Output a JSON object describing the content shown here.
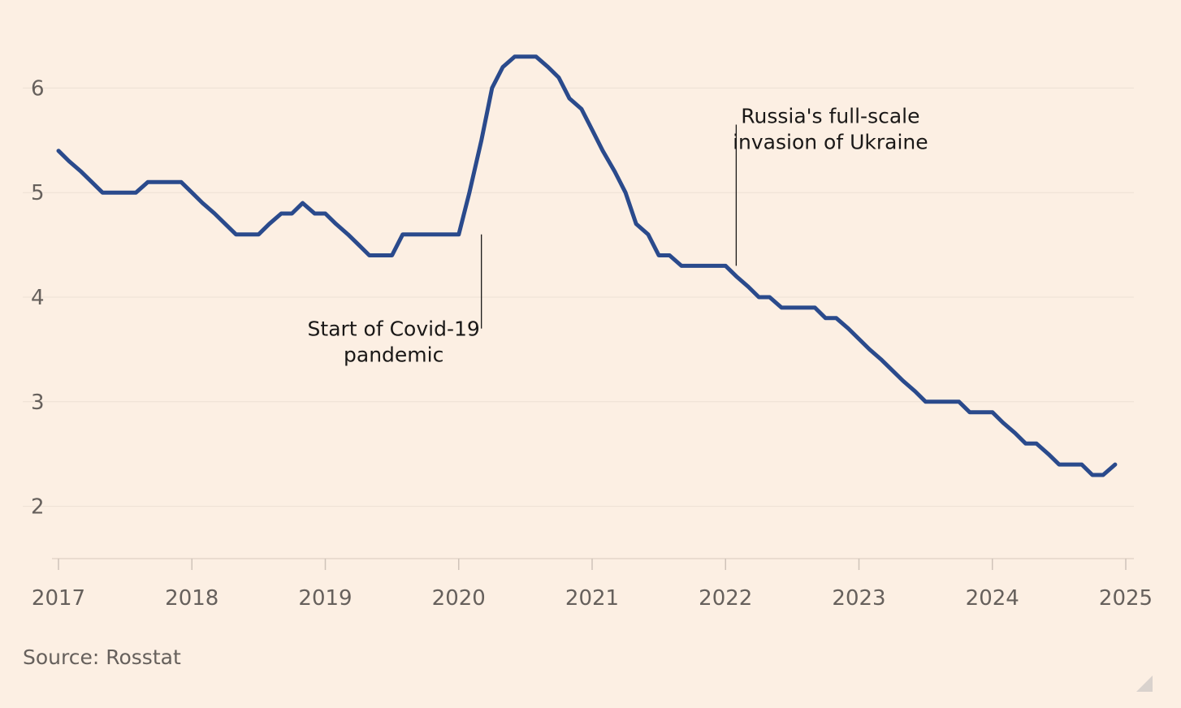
{
  "chart_data": {
    "type": "line",
    "title": "",
    "xlabel": "",
    "ylabel": "",
    "ylim": [
      1.5,
      6.5
    ],
    "xlim": [
      2017,
      2025
    ],
    "y_ticks": [
      "2",
      "3",
      "4",
      "5",
      "6"
    ],
    "x_ticks": [
      "2017",
      "2018",
      "2019",
      "2020",
      "2021",
      "2022",
      "2023",
      "2024",
      "2025"
    ],
    "grid": "horizontal",
    "series": [
      {
        "color": "#2a4a8c",
        "points": [
          [
            2017.0,
            5.4
          ],
          [
            2017.08,
            5.3
          ],
          [
            2017.17,
            5.2
          ],
          [
            2017.25,
            5.1
          ],
          [
            2017.33,
            5.0
          ],
          [
            2017.42,
            5.0
          ],
          [
            2017.5,
            5.0
          ],
          [
            2017.58,
            5.0
          ],
          [
            2017.67,
            5.1
          ],
          [
            2017.75,
            5.1
          ],
          [
            2017.83,
            5.1
          ],
          [
            2017.92,
            5.1
          ],
          [
            2018.0,
            5.0
          ],
          [
            2018.08,
            4.9
          ],
          [
            2018.17,
            4.8
          ],
          [
            2018.25,
            4.7
          ],
          [
            2018.33,
            4.6
          ],
          [
            2018.42,
            4.6
          ],
          [
            2018.5,
            4.6
          ],
          [
            2018.58,
            4.7
          ],
          [
            2018.67,
            4.8
          ],
          [
            2018.75,
            4.8
          ],
          [
            2018.83,
            4.9
          ],
          [
            2018.92,
            4.8
          ],
          [
            2019.0,
            4.8
          ],
          [
            2019.08,
            4.7
          ],
          [
            2019.17,
            4.6
          ],
          [
            2019.25,
            4.5
          ],
          [
            2019.33,
            4.4
          ],
          [
            2019.42,
            4.4
          ],
          [
            2019.5,
            4.4
          ],
          [
            2019.58,
            4.6
          ],
          [
            2019.67,
            4.6
          ],
          [
            2019.75,
            4.6
          ],
          [
            2019.83,
            4.6
          ],
          [
            2019.92,
            4.6
          ],
          [
            2020.0,
            4.6
          ],
          [
            2020.08,
            5.0
          ],
          [
            2020.17,
            5.5
          ],
          [
            2020.25,
            6.0
          ],
          [
            2020.33,
            6.2
          ],
          [
            2020.42,
            6.3
          ],
          [
            2020.5,
            6.3
          ],
          [
            2020.58,
            6.3
          ],
          [
            2020.67,
            6.2
          ],
          [
            2020.75,
            6.1
          ],
          [
            2020.83,
            5.9
          ],
          [
            2020.92,
            5.8
          ],
          [
            2021.0,
            5.6
          ],
          [
            2021.08,
            5.4
          ],
          [
            2021.17,
            5.2
          ],
          [
            2021.25,
            5.0
          ],
          [
            2021.33,
            4.7
          ],
          [
            2021.42,
            4.6
          ],
          [
            2021.5,
            4.4
          ],
          [
            2021.58,
            4.4
          ],
          [
            2021.67,
            4.3
          ],
          [
            2021.75,
            4.3
          ],
          [
            2021.83,
            4.3
          ],
          [
            2021.92,
            4.3
          ],
          [
            2022.0,
            4.3
          ],
          [
            2022.08,
            4.2
          ],
          [
            2022.17,
            4.1
          ],
          [
            2022.25,
            4.0
          ],
          [
            2022.33,
            4.0
          ],
          [
            2022.42,
            3.9
          ],
          [
            2022.5,
            3.9
          ],
          [
            2022.58,
            3.9
          ],
          [
            2022.67,
            3.9
          ],
          [
            2022.75,
            3.8
          ],
          [
            2022.83,
            3.8
          ],
          [
            2022.92,
            3.7
          ],
          [
            2023.0,
            3.6
          ],
          [
            2023.08,
            3.5
          ],
          [
            2023.17,
            3.4
          ],
          [
            2023.25,
            3.3
          ],
          [
            2023.33,
            3.2
          ],
          [
            2023.42,
            3.1
          ],
          [
            2023.5,
            3.0
          ],
          [
            2023.58,
            3.0
          ],
          [
            2023.67,
            3.0
          ],
          [
            2023.75,
            3.0
          ],
          [
            2023.83,
            2.9
          ],
          [
            2023.92,
            2.9
          ],
          [
            2024.0,
            2.9
          ],
          [
            2024.08,
            2.8
          ],
          [
            2024.17,
            2.7
          ],
          [
            2024.25,
            2.6
          ],
          [
            2024.33,
            2.6
          ],
          [
            2024.42,
            2.5
          ],
          [
            2024.5,
            2.4
          ],
          [
            2024.58,
            2.4
          ],
          [
            2024.67,
            2.4
          ],
          [
            2024.75,
            2.3
          ],
          [
            2024.83,
            2.3
          ],
          [
            2024.92,
            2.4
          ]
        ]
      }
    ],
    "annotations": [
      {
        "lines": [
          "Start of Covid-19",
          "pandemic"
        ],
        "x": 2020.17,
        "y": 4.6,
        "y_end": 3.7,
        "text_side": "left"
      },
      {
        "lines": [
          "Russia's full-scale",
          "invasion of Ukraine"
        ],
        "x": 2022.08,
        "y": 4.3,
        "y_end": 5.65,
        "text_side": "right"
      }
    ]
  },
  "footer": {
    "source": "Source: Rosstat"
  }
}
